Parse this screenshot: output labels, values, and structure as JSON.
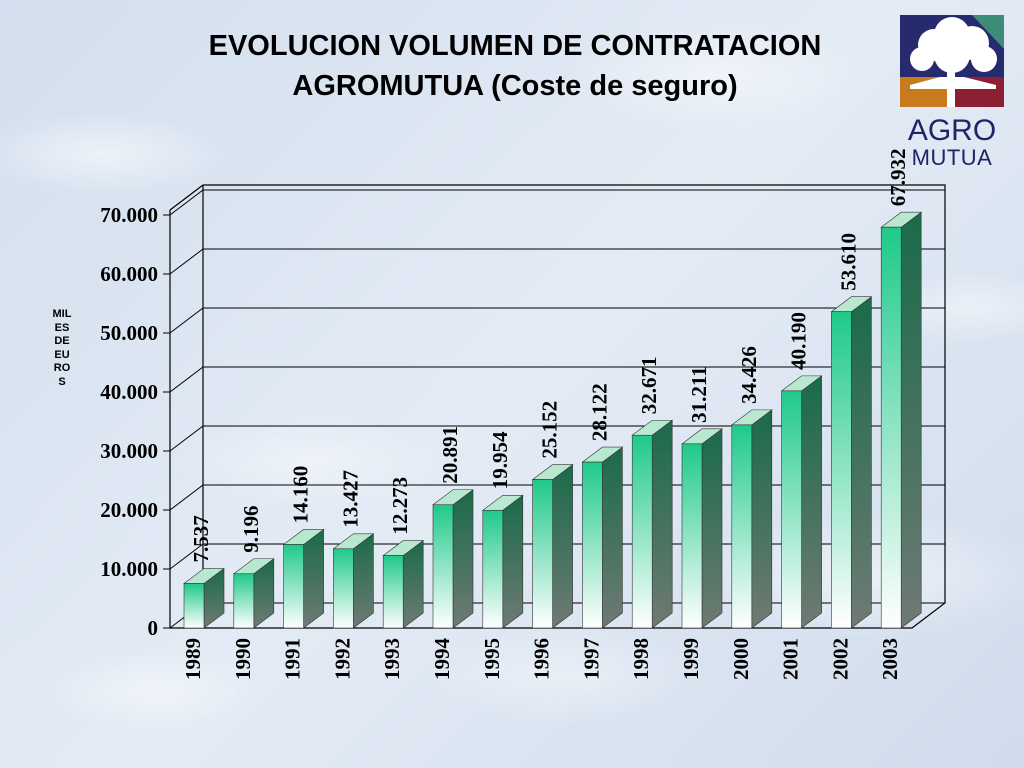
{
  "title_line1": "EVOLUCION VOLUMEN DE CONTRATACION",
  "title_line2": "AGROMUTUA (Coste de seguro)",
  "logo": {
    "word1": "AGRO",
    "word2": "MUTUA",
    "colors": [
      "#252b6e",
      "#3e8b77",
      "#c97a1c",
      "#8c2033"
    ]
  },
  "colors": {
    "bar_front_top": "#1fc98a",
    "bar_front_bottom": "#ffffff",
    "bar_side": "#1a5c42",
    "bar_top": "#b8e8d0"
  },
  "chart_data": {
    "type": "bar",
    "title": "EVOLUCION VOLUMEN DE CONTRATACION AGROMUTUA (Coste de seguro)",
    "ylabel": "MILES DE EUROS",
    "xlabel": "",
    "categories": [
      "1989",
      "1990",
      "1991",
      "1992",
      "1993",
      "1994",
      "1995",
      "1996",
      "1997",
      "1998",
      "1999",
      "2000",
      "2001",
      "2002",
      "2003"
    ],
    "values": [
      7537,
      9196,
      14160,
      13427,
      12273,
      20891,
      19954,
      25152,
      28122,
      32671,
      31211,
      34426,
      40190,
      53610,
      67932
    ],
    "value_labels": [
      "7.537",
      "9.196",
      "14.160",
      "13.427",
      "12.273",
      "20.891",
      "19.954",
      "25.152",
      "28.122",
      "32.671",
      "31.211",
      "34.426",
      "40.190",
      "53.610",
      "67.932"
    ],
    "ylim": [
      0,
      70000
    ],
    "yticks": [
      0,
      10000,
      20000,
      30000,
      40000,
      50000,
      60000,
      70000
    ],
    "ytick_labels": [
      "0",
      "10.000",
      "20.000",
      "30.000",
      "40.000",
      "50.000",
      "60.000",
      "70.000"
    ],
    "grid": true,
    "style": "3d-bar"
  }
}
